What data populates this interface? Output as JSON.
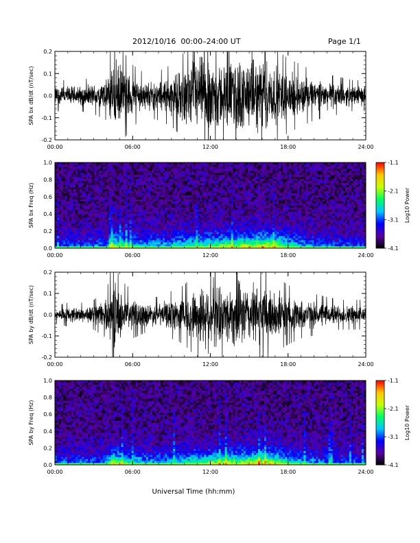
{
  "header": {
    "title": "2012/10/16  00:00–24:00 UT",
    "page": "Page 1/1"
  },
  "xlabel": "Universal Time (hh:mm)",
  "colorbar": {
    "label": "Log10 Power",
    "ticks": [
      "-1.1",
      "-2.1",
      "-3.1",
      "-4.1"
    ],
    "range": [
      -4.1,
      -1.1
    ],
    "colors": [
      "#000000",
      "#5a00a0",
      "#0000ff",
      "#00c8ff",
      "#00ff64",
      "#c8ff00",
      "#ffc800",
      "#ff0000"
    ]
  },
  "chart_data": [
    {
      "type": "line",
      "ylabel": "SPA bx dB/dt (nT/sec)",
      "xlim": [
        0,
        24
      ],
      "ylim": [
        -0.2,
        0.2
      ],
      "xticks": [
        "00:00",
        "06:00",
        "12:00",
        "18:00",
        "24:00"
      ],
      "yticks": [
        "-0.2",
        "-0.1",
        "0.0",
        "0.1",
        "0.2"
      ],
      "amplitude_envelope": {
        "hours": [
          0,
          1,
          2,
          3,
          4,
          4.5,
          5,
          6,
          7,
          8,
          9,
          10,
          11,
          12,
          13,
          14,
          15,
          16,
          17,
          18,
          19,
          20,
          21,
          22,
          23,
          24
        ],
        "amp": [
          0.05,
          0.05,
          0.05,
          0.06,
          0.08,
          0.2,
          0.16,
          0.1,
          0.07,
          0.08,
          0.1,
          0.14,
          0.2,
          0.2,
          0.16,
          0.2,
          0.17,
          0.2,
          0.15,
          0.12,
          0.1,
          0.08,
          0.07,
          0.06,
          0.05,
          0.05
        ]
      }
    },
    {
      "type": "heatmap",
      "ylabel": "SPA bx Freq (Hz)",
      "xlim": [
        0,
        24
      ],
      "ylim": [
        0,
        1.0
      ],
      "xticks": [
        "00:00",
        "06:00",
        "12:00",
        "18:00",
        "24:00"
      ],
      "yticks": [
        "0.0",
        "0.2",
        "0.4",
        "0.6",
        "0.8",
        "1.0"
      ],
      "zlabel": "Log10 Power",
      "zlim": [
        -4.1,
        -1.1
      ],
      "intensity_profile": {
        "hours": [
          0,
          2,
          4,
          4.5,
          6,
          8,
          10,
          12,
          14,
          16,
          17,
          18,
          20,
          22,
          24
        ],
        "level": [
          0.25,
          0.25,
          0.3,
          0.6,
          0.4,
          0.35,
          0.45,
          0.55,
          0.6,
          0.7,
          0.65,
          0.45,
          0.3,
          0.25,
          0.2
        ]
      }
    },
    {
      "type": "line",
      "ylabel": "SPA by dB/dt (nT/sec)",
      "xlim": [
        0,
        24
      ],
      "ylim": [
        -0.2,
        0.2
      ],
      "xticks": [
        "00:00",
        "06:00",
        "12:00",
        "18:00",
        "24:00"
      ],
      "yticks": [
        "-0.2",
        "-0.1",
        "0.0",
        "0.1",
        "0.2"
      ],
      "amplitude_envelope": {
        "hours": [
          0,
          1,
          2,
          3,
          4,
          4.5,
          5,
          6,
          7,
          8,
          9,
          10,
          11,
          12,
          13,
          14,
          15,
          16,
          17,
          18,
          19,
          20,
          21,
          22,
          23,
          24
        ],
        "amp": [
          0.03,
          0.04,
          0.04,
          0.05,
          0.08,
          0.2,
          0.12,
          0.08,
          0.06,
          0.06,
          0.08,
          0.1,
          0.15,
          0.2,
          0.14,
          0.18,
          0.15,
          0.18,
          0.13,
          0.1,
          0.08,
          0.07,
          0.06,
          0.05,
          0.05,
          0.05
        ]
      }
    },
    {
      "type": "heatmap",
      "ylabel": "SPA by Freq (Hz)",
      "xlim": [
        0,
        24
      ],
      "ylim": [
        0,
        1.0
      ],
      "xticks": [
        "00:00",
        "06:00",
        "12:00",
        "18:00",
        "24:00"
      ],
      "yticks": [
        "0.0",
        "0.2",
        "0.4",
        "0.6",
        "0.8",
        "1.0"
      ],
      "zlabel": "Log10 Power",
      "zlim": [
        -4.1,
        -1.1
      ],
      "intensity_profile": {
        "hours": [
          0,
          2,
          4,
          4.5,
          6,
          8,
          10,
          12,
          14,
          16,
          17,
          18,
          20,
          22,
          24
        ],
        "level": [
          0.25,
          0.25,
          0.3,
          0.65,
          0.4,
          0.35,
          0.45,
          0.55,
          0.6,
          0.7,
          0.65,
          0.45,
          0.3,
          0.25,
          0.2
        ]
      }
    }
  ]
}
